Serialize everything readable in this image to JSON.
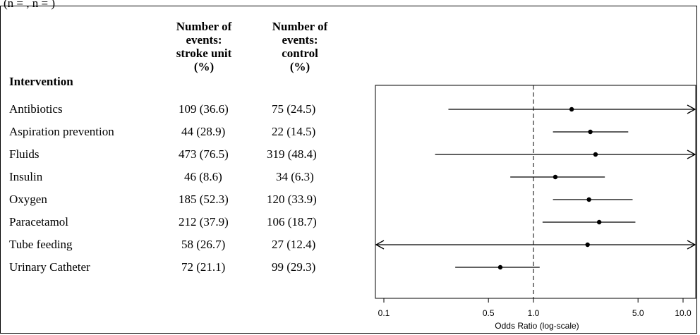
{
  "top_text": "(n = , n = )",
  "table": {
    "headers": [
      "Intervention",
      "Number of\nevents:\nstroke unit\n(%)",
      "Number of\nevents:\ncontrol\n(%)"
    ],
    "rows": [
      {
        "intervention": "Antibiotics",
        "stroke_unit": "109 (36.6)",
        "control": "75 (24.5)"
      },
      {
        "intervention": "Aspiration prevention",
        "stroke_unit": "44 (28.9)",
        "control": "22 (14.5)"
      },
      {
        "intervention": "Fluids",
        "stroke_unit": "473 (76.5)",
        "control": "319 (48.4)"
      },
      {
        "intervention": "Insulin",
        "stroke_unit": "46 (8.6)",
        "control": "34 (6.3)"
      },
      {
        "intervention": "Oxygen",
        "stroke_unit": "185 (52.3)",
        "control": "120 (33.9)"
      },
      {
        "intervention": "Paracetamol",
        "stroke_unit": "212 (37.9)",
        "control": "106 (18.7)"
      },
      {
        "intervention": "Tube feeding",
        "stroke_unit": "58 (26.7)",
        "control": "27 (12.4)"
      },
      {
        "intervention": "Urinary Catheter",
        "stroke_unit": "72 (21.1)",
        "control": "99 (29.3)"
      }
    ]
  },
  "chart_data": {
    "type": "scatter",
    "xlabel": "Odds Ratio (log-scale)",
    "x_scale": "log",
    "xlim": [
      0.08,
      12
    ],
    "x_ticks": [
      0.1,
      0.5,
      1.0,
      5.0,
      10.0
    ],
    "x_tick_labels": [
      "0.1",
      "0.5",
      "1.0",
      "5.0",
      "10.0"
    ],
    "reference_line": 1.0,
    "series": [
      {
        "label": "Antibiotics",
        "or": 1.8,
        "lower": 0.27,
        "upper": 12,
        "upper_arrow": true,
        "lower_arrow": false
      },
      {
        "label": "Aspiration prevention",
        "or": 2.4,
        "lower": 1.35,
        "upper": 4.3,
        "upper_arrow": false,
        "lower_arrow": false
      },
      {
        "label": "Fluids",
        "or": 2.6,
        "lower": 0.22,
        "upper": 12,
        "upper_arrow": true,
        "lower_arrow": false
      },
      {
        "label": "Insulin",
        "or": 1.4,
        "lower": 0.7,
        "upper": 3.0,
        "upper_arrow": false,
        "lower_arrow": false
      },
      {
        "label": "Oxygen",
        "or": 2.35,
        "lower": 1.35,
        "upper": 4.6,
        "upper_arrow": false,
        "lower_arrow": false
      },
      {
        "label": "Paracetamol",
        "or": 2.75,
        "lower": 1.15,
        "upper": 4.8,
        "upper_arrow": false,
        "lower_arrow": false
      },
      {
        "label": "Tube feeding",
        "or": 2.3,
        "lower": 0.08,
        "upper": 12,
        "upper_arrow": true,
        "lower_arrow": true
      },
      {
        "label": "Urinary Catheter",
        "or": 0.6,
        "lower": 0.3,
        "upper": 1.1,
        "upper_arrow": false,
        "lower_arrow": false
      }
    ]
  }
}
